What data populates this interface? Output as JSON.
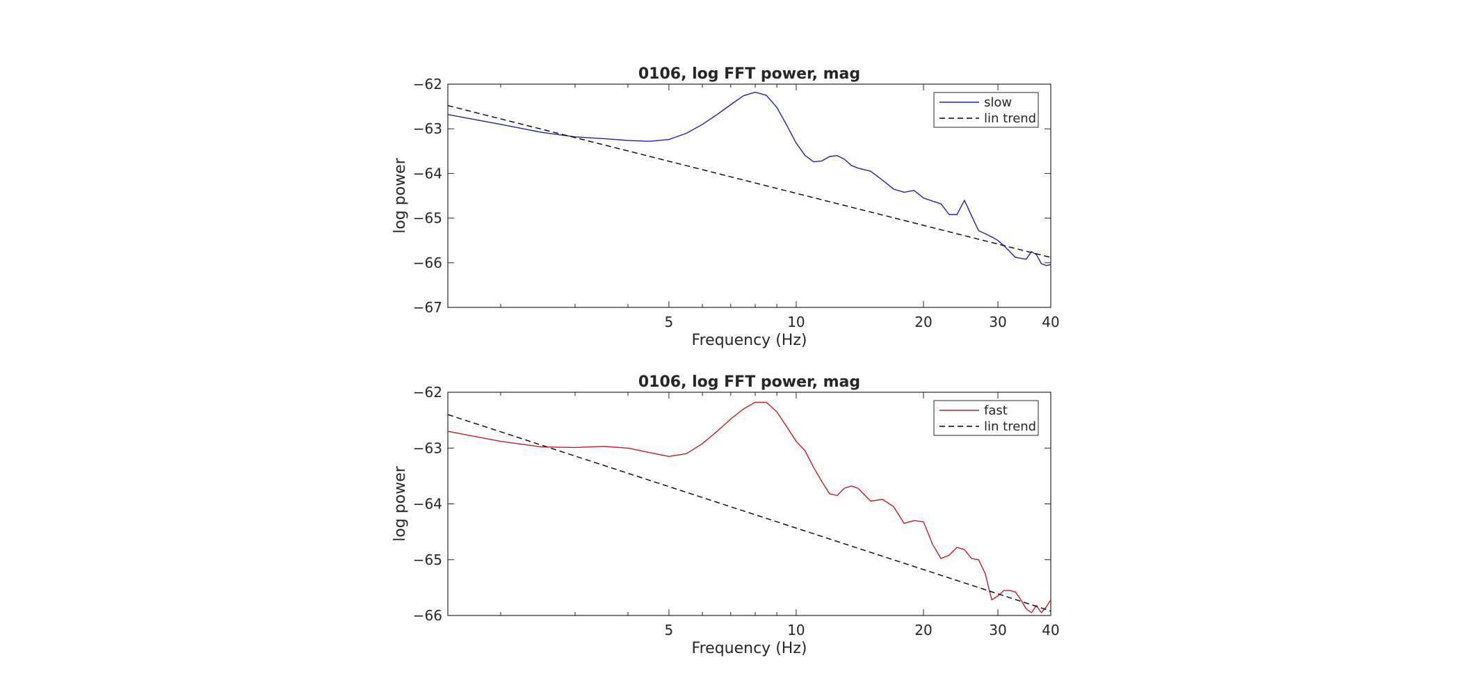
{
  "chart_data": [
    {
      "type": "line",
      "title": "0106, log FFT power, mag",
      "xlabel": "Frequency (Hz)",
      "ylabel": "log power",
      "xscale": "log",
      "xlim": [
        1.5,
        40
      ],
      "ylim": [
        -67,
        -62
      ],
      "xticks": [
        5,
        10,
        20,
        30,
        40
      ],
      "xtick_labels": [
        "5",
        "10",
        "20",
        "30",
        "40"
      ],
      "yticks": [
        -62,
        -63,
        -64,
        -65,
        -66,
        -67
      ],
      "ytick_labels": [
        "−62",
        "−63",
        "−64",
        "−65",
        "−66",
        "−67"
      ],
      "legend_location": "top-right",
      "grid": false,
      "series": [
        {
          "name": "slow",
          "color": "#2020b0",
          "style": "solid",
          "x": [
            1.5,
            2.0,
            2.5,
            3.0,
            3.5,
            4.0,
            4.5,
            5.0,
            5.5,
            6.0,
            6.5,
            7.0,
            7.5,
            8.0,
            8.5,
            9.0,
            9.5,
            10.0,
            10.5,
            11.0,
            11.5,
            12.0,
            12.5,
            13.0,
            13.5,
            14.0,
            15.0,
            16.0,
            17.0,
            18.0,
            19.0,
            20.0,
            21.0,
            22.0,
            23.0,
            24.0,
            25.0,
            26.0,
            27.0,
            28.0,
            29.0,
            30.0,
            31.0,
            32.0,
            33.0,
            34.0,
            35.0,
            36.0,
            37.0,
            38.0,
            39.0,
            40.0
          ],
          "y": [
            -62.68,
            -62.9,
            -63.08,
            -63.18,
            -63.22,
            -63.26,
            -63.28,
            -63.24,
            -63.1,
            -62.9,
            -62.68,
            -62.46,
            -62.26,
            -62.18,
            -62.25,
            -62.52,
            -62.92,
            -63.32,
            -63.6,
            -63.74,
            -63.72,
            -63.62,
            -63.6,
            -63.68,
            -63.82,
            -63.88,
            -63.95,
            -64.15,
            -64.35,
            -64.42,
            -64.38,
            -64.55,
            -64.62,
            -64.68,
            -64.92,
            -64.92,
            -64.6,
            -64.95,
            -65.28,
            -65.35,
            -65.42,
            -65.5,
            -65.62,
            -65.75,
            -65.88,
            -65.9,
            -65.92,
            -65.75,
            -65.82,
            -66.02,
            -66.06,
            -66.04
          ]
        },
        {
          "name": "lin trend",
          "color": "#000000",
          "style": "dashed",
          "x": [
            1.5,
            40.0
          ],
          "y": [
            -62.48,
            -65.88
          ]
        }
      ]
    },
    {
      "type": "line",
      "title": "0106, log FFT power, mag",
      "xlabel": "Frequency (Hz)",
      "ylabel": "log power",
      "xscale": "log",
      "xlim": [
        1.5,
        40
      ],
      "ylim": [
        -66,
        -62
      ],
      "xticks": [
        5,
        10,
        20,
        30,
        40
      ],
      "xtick_labels": [
        "5",
        "10",
        "20",
        "30",
        "40"
      ],
      "yticks": [
        -62,
        -63,
        -64,
        -65,
        -66
      ],
      "ytick_labels": [
        "−62",
        "−63",
        "−64",
        "−65",
        "−66"
      ],
      "legend_location": "top-right",
      "grid": false,
      "series": [
        {
          "name": "fast",
          "color": "#c41e1e",
          "style": "solid",
          "x": [
            1.5,
            2.0,
            2.5,
            3.0,
            3.5,
            4.0,
            4.5,
            5.0,
            5.5,
            6.0,
            6.5,
            7.0,
            7.5,
            8.0,
            8.5,
            9.0,
            9.5,
            10.0,
            10.5,
            11.0,
            11.5,
            12.0,
            12.5,
            13.0,
            13.5,
            14.0,
            15.0,
            16.0,
            17.0,
            18.0,
            19.0,
            20.0,
            21.0,
            22.0,
            23.0,
            24.0,
            25.0,
            26.0,
            27.0,
            28.0,
            29.0,
            30.0,
            31.0,
            32.0,
            33.0,
            34.0,
            35.0,
            36.0,
            37.0,
            38.0,
            39.0,
            40.0
          ],
          "y": [
            -62.7,
            -62.88,
            -62.98,
            -62.99,
            -62.97,
            -63.0,
            -63.08,
            -63.15,
            -63.1,
            -62.92,
            -62.7,
            -62.48,
            -62.3,
            -62.18,
            -62.18,
            -62.35,
            -62.62,
            -62.88,
            -63.05,
            -63.35,
            -63.6,
            -63.82,
            -63.85,
            -63.72,
            -63.68,
            -63.72,
            -63.95,
            -63.92,
            -64.05,
            -64.35,
            -64.3,
            -64.32,
            -64.72,
            -64.98,
            -64.92,
            -64.78,
            -64.82,
            -64.98,
            -65.0,
            -65.25,
            -65.72,
            -65.65,
            -65.55,
            -65.55,
            -65.58,
            -65.72,
            -65.88,
            -65.95,
            -65.82,
            -65.95,
            -65.85,
            -65.72
          ]
        },
        {
          "name": "lin trend",
          "color": "#000000",
          "style": "dashed",
          "x": [
            1.5,
            40.0
          ],
          "y": [
            -62.4,
            -65.92
          ]
        }
      ]
    }
  ]
}
